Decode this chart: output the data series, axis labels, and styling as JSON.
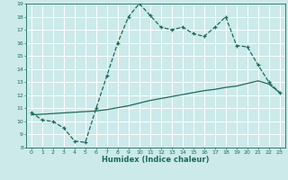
{
  "xlabel": "Humidex (Indice chaleur)",
  "bg_color": "#cceaea",
  "grid_color": "#ffffff",
  "line_color": "#1a6b5a",
  "xlim": [
    -0.5,
    23.5
  ],
  "ylim": [
    8,
    19
  ],
  "xticks": [
    0,
    1,
    2,
    3,
    4,
    5,
    6,
    7,
    8,
    9,
    10,
    11,
    12,
    13,
    14,
    15,
    16,
    17,
    18,
    19,
    20,
    21,
    22,
    23
  ],
  "yticks": [
    8,
    9,
    10,
    11,
    12,
    13,
    14,
    15,
    16,
    17,
    18,
    19
  ],
  "hours": [
    0,
    1,
    2,
    3,
    4,
    5,
    6,
    7,
    8,
    9,
    10,
    11,
    12,
    13,
    14,
    15,
    16,
    17,
    18,
    19,
    20,
    21,
    22,
    23
  ],
  "temp_line": [
    10.7,
    10.1,
    10.0,
    9.5,
    8.5,
    8.4,
    11.0,
    13.5,
    16.0,
    18.0,
    19.0,
    18.1,
    17.2,
    17.0,
    17.2,
    16.7,
    16.5,
    17.2,
    18.0,
    15.8,
    15.7,
    14.3,
    13.0,
    12.2
  ],
  "trend_line": [
    10.5,
    10.55,
    10.6,
    10.65,
    10.7,
    10.75,
    10.8,
    10.9,
    11.05,
    11.2,
    11.4,
    11.6,
    11.75,
    11.9,
    12.05,
    12.2,
    12.35,
    12.45,
    12.6,
    12.7,
    12.9,
    13.1,
    12.85,
    12.2
  ]
}
